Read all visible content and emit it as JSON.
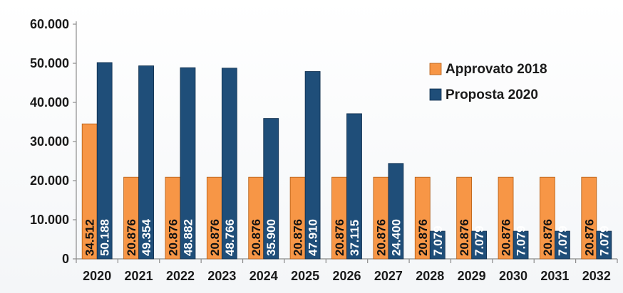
{
  "chart_data": {
    "type": "bar",
    "categories": [
      "2020",
      "2021",
      "2022",
      "2023",
      "2024",
      "2025",
      "2026",
      "2027",
      "2028",
      "2029",
      "2030",
      "2031",
      "2032"
    ],
    "series": [
      {
        "name": "Approvato 2018",
        "color": "#F79646",
        "values": [
          34512,
          20876,
          20876,
          20876,
          20876,
          20876,
          20876,
          20876,
          20876,
          20876,
          20876,
          20876,
          20876
        ],
        "labels": [
          "34.512",
          "20.876",
          "20.876",
          "20.876",
          "20.876",
          "20.876",
          "20.876",
          "20.876",
          "20.876",
          "20.876",
          "20.876",
          "20.876",
          "20.876"
        ]
      },
      {
        "name": "Proposta 2020",
        "color": "#1F4E79",
        "values": [
          50188,
          49354,
          48882,
          48766,
          35900,
          47910,
          37115,
          24400,
          7079,
          7079,
          7079,
          7079,
          7079
        ],
        "labels": [
          "50.188",
          "49.354",
          "48.882",
          "48.766",
          "35.900",
          "47.910",
          "37.115",
          "24.400",
          "7.079",
          "7.079",
          "7.079",
          "7.079",
          "7.079"
        ]
      }
    ],
    "y_ticks": [
      0,
      10000,
      20000,
      30000,
      40000,
      50000,
      60000
    ],
    "y_tick_labels": [
      "0",
      "10.000",
      "20.000",
      "30.000",
      "40.000",
      "50.000",
      "60.000"
    ],
    "ylim": [
      0,
      60000
    ],
    "grid": false,
    "legend": "top-right",
    "title": "",
    "xlabel": "",
    "ylabel": ""
  }
}
